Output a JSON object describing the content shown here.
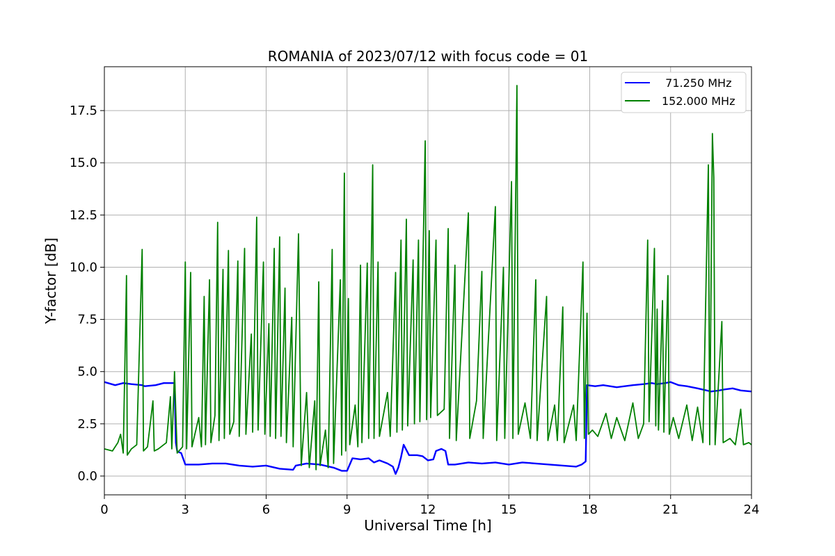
{
  "chart_data": {
    "type": "line",
    "title": "ROMANIA of 2023/07/12 with focus code = 01",
    "xlabel": "Universal Time [h]",
    "ylabel": "Y-factor [dB]",
    "xlim": [
      0,
      24
    ],
    "ylim": [
      -0.9,
      19.6
    ],
    "xticks": [
      0,
      3,
      6,
      9,
      12,
      15,
      18,
      21,
      24
    ],
    "yticks": [
      0.0,
      2.5,
      5.0,
      7.5,
      10.0,
      12.5,
      15.0,
      17.5
    ],
    "xtick_labels": [
      "0",
      "3",
      "6",
      "9",
      "12",
      "15",
      "18",
      "21",
      "24"
    ],
    "ytick_labels": [
      "0.0",
      "2.5",
      "5.0",
      "7.5",
      "10.0",
      "12.5",
      "15.0",
      "17.5"
    ],
    "grid": true,
    "legend_position": "top-right",
    "series": [
      {
        "name": "  71.250 MHz",
        "color": "#0000ff",
        "points": [
          [
            0,
            4.5
          ],
          [
            0.4,
            4.35
          ],
          [
            0.7,
            4.45
          ],
          [
            1.0,
            4.4
          ],
          [
            1.4,
            4.35
          ],
          [
            1.5,
            4.3
          ],
          [
            1.9,
            4.35
          ],
          [
            2.2,
            4.45
          ],
          [
            2.6,
            4.45
          ],
          [
            2.65,
            1.6
          ],
          [
            2.7,
            1.2
          ],
          [
            2.75,
            1.15
          ],
          [
            2.85,
            1.1
          ],
          [
            3.0,
            0.55
          ],
          [
            3.5,
            0.55
          ],
          [
            4.0,
            0.6
          ],
          [
            4.5,
            0.6
          ],
          [
            5.0,
            0.5
          ],
          [
            5.5,
            0.45
          ],
          [
            6.0,
            0.5
          ],
          [
            6.5,
            0.35
          ],
          [
            7.0,
            0.3
          ],
          [
            7.1,
            0.5
          ],
          [
            7.5,
            0.6
          ],
          [
            8.0,
            0.55
          ],
          [
            8.5,
            0.4
          ],
          [
            8.8,
            0.25
          ],
          [
            9.0,
            0.25
          ],
          [
            9.2,
            0.85
          ],
          [
            9.5,
            0.8
          ],
          [
            9.8,
            0.85
          ],
          [
            10.0,
            0.65
          ],
          [
            10.2,
            0.75
          ],
          [
            10.5,
            0.6
          ],
          [
            10.7,
            0.45
          ],
          [
            10.8,
            0.1
          ],
          [
            10.9,
            0.4
          ],
          [
            11.0,
            0.9
          ],
          [
            11.1,
            1.5
          ],
          [
            11.3,
            1.0
          ],
          [
            11.6,
            1.0
          ],
          [
            11.8,
            0.95
          ],
          [
            12.0,
            0.75
          ],
          [
            12.2,
            0.8
          ],
          [
            12.3,
            1.2
          ],
          [
            12.5,
            1.3
          ],
          [
            12.65,
            1.2
          ],
          [
            12.75,
            0.55
          ],
          [
            13.0,
            0.55
          ],
          [
            13.5,
            0.65
          ],
          [
            14.0,
            0.6
          ],
          [
            14.5,
            0.65
          ],
          [
            15.0,
            0.55
          ],
          [
            15.5,
            0.65
          ],
          [
            16.0,
            0.6
          ],
          [
            16.5,
            0.55
          ],
          [
            17.0,
            0.5
          ],
          [
            17.5,
            0.45
          ],
          [
            17.7,
            0.55
          ],
          [
            17.85,
            0.7
          ],
          [
            17.9,
            4.35
          ],
          [
            18.2,
            4.3
          ],
          [
            18.5,
            4.35
          ],
          [
            19.0,
            4.25
          ],
          [
            19.3,
            4.3
          ],
          [
            19.6,
            4.35
          ],
          [
            20.0,
            4.4
          ],
          [
            20.3,
            4.45
          ],
          [
            20.5,
            4.4
          ],
          [
            20.8,
            4.45
          ],
          [
            21.0,
            4.5
          ],
          [
            21.3,
            4.35
          ],
          [
            21.6,
            4.3
          ],
          [
            22.0,
            4.2
          ],
          [
            22.5,
            4.05
          ],
          [
            22.8,
            4.1
          ],
          [
            23.0,
            4.15
          ],
          [
            23.3,
            4.2
          ],
          [
            23.6,
            4.1
          ],
          [
            24.0,
            4.05
          ]
        ]
      },
      {
        "name": "152.000 MHz",
        "color": "#008000",
        "points": [
          [
            0,
            1.3
          ],
          [
            0.3,
            1.2
          ],
          [
            0.5,
            1.6
          ],
          [
            0.6,
            2.0
          ],
          [
            0.7,
            1.1
          ],
          [
            0.82,
            9.6
          ],
          [
            0.85,
            1.0
          ],
          [
            1.0,
            1.3
          ],
          [
            1.2,
            1.5
          ],
          [
            1.4,
            10.85
          ],
          [
            1.45,
            1.2
          ],
          [
            1.6,
            1.4
          ],
          [
            1.8,
            3.6
          ],
          [
            1.85,
            1.2
          ],
          [
            2.0,
            1.3
          ],
          [
            2.3,
            1.6
          ],
          [
            2.45,
            3.8
          ],
          [
            2.5,
            1.3
          ],
          [
            2.6,
            5.0
          ],
          [
            2.7,
            1.1
          ],
          [
            2.9,
            1.4
          ],
          [
            3.0,
            10.25
          ],
          [
            3.05,
            1.3
          ],
          [
            3.2,
            9.75
          ],
          [
            3.25,
            1.4
          ],
          [
            3.5,
            2.8
          ],
          [
            3.6,
            1.4
          ],
          [
            3.7,
            8.6
          ],
          [
            3.75,
            1.5
          ],
          [
            3.9,
            9.4
          ],
          [
            3.95,
            1.6
          ],
          [
            4.1,
            2.9
          ],
          [
            4.2,
            12.15
          ],
          [
            4.25,
            1.7
          ],
          [
            4.4,
            9.9
          ],
          [
            4.45,
            1.8
          ],
          [
            4.6,
            10.8
          ],
          [
            4.65,
            2.0
          ],
          [
            4.8,
            2.6
          ],
          [
            4.95,
            10.3
          ],
          [
            5.0,
            1.9
          ],
          [
            5.2,
            10.9
          ],
          [
            5.25,
            2.0
          ],
          [
            5.45,
            6.8
          ],
          [
            5.5,
            2.1
          ],
          [
            5.65,
            12.4
          ],
          [
            5.7,
            2.2
          ],
          [
            5.9,
            10.25
          ],
          [
            5.95,
            2.0
          ],
          [
            6.1,
            7.3
          ],
          [
            6.15,
            1.9
          ],
          [
            6.3,
            10.9
          ],
          [
            6.35,
            1.8
          ],
          [
            6.5,
            11.45
          ],
          [
            6.55,
            1.9
          ],
          [
            6.7,
            9.0
          ],
          [
            6.75,
            1.6
          ],
          [
            6.95,
            7.6
          ],
          [
            7.0,
            1.4
          ],
          [
            7.2,
            11.6
          ],
          [
            7.3,
            0.5
          ],
          [
            7.5,
            4.0
          ],
          [
            7.6,
            0.4
          ],
          [
            7.8,
            3.6
          ],
          [
            7.85,
            0.3
          ],
          [
            7.95,
            9.3
          ],
          [
            8.0,
            0.5
          ],
          [
            8.2,
            2.2
          ],
          [
            8.3,
            0.4
          ],
          [
            8.45,
            10.85
          ],
          [
            8.5,
            0.6
          ],
          [
            8.75,
            9.4
          ],
          [
            8.8,
            1.0
          ],
          [
            8.9,
            14.5
          ],
          [
            8.95,
            1.2
          ],
          [
            9.05,
            8.5
          ],
          [
            9.1,
            1.5
          ],
          [
            9.3,
            3.4
          ],
          [
            9.4,
            1.4
          ],
          [
            9.5,
            10.1
          ],
          [
            9.55,
            1.6
          ],
          [
            9.75,
            10.2
          ],
          [
            9.8,
            1.8
          ],
          [
            9.95,
            14.9
          ],
          [
            10.0,
            1.8
          ],
          [
            10.15,
            10.25
          ],
          [
            10.2,
            1.9
          ],
          [
            10.5,
            4.0
          ],
          [
            10.6,
            1.9
          ],
          [
            10.8,
            9.75
          ],
          [
            10.85,
            2.1
          ],
          [
            11.0,
            11.3
          ],
          [
            11.05,
            2.2
          ],
          [
            11.2,
            12.3
          ],
          [
            11.25,
            2.4
          ],
          [
            11.45,
            10.35
          ],
          [
            11.5,
            2.5
          ],
          [
            11.65,
            11.3
          ],
          [
            11.7,
            2.6
          ],
          [
            11.9,
            16.05
          ],
          [
            11.95,
            2.7
          ],
          [
            12.05,
            11.75
          ],
          [
            12.1,
            2.8
          ],
          [
            12.3,
            11.3
          ],
          [
            12.35,
            2.9
          ],
          [
            12.6,
            3.2
          ],
          [
            12.75,
            11.85
          ],
          [
            12.8,
            1.8
          ],
          [
            13.0,
            10.1
          ],
          [
            13.05,
            1.7
          ],
          [
            13.5,
            12.6
          ],
          [
            13.55,
            1.8
          ],
          [
            13.8,
            3.6
          ],
          [
            14.0,
            9.8
          ],
          [
            14.05,
            1.8
          ],
          [
            14.5,
            12.9
          ],
          [
            14.55,
            1.7
          ],
          [
            14.8,
            10.0
          ],
          [
            14.85,
            1.8
          ],
          [
            15.1,
            14.1
          ],
          [
            15.15,
            1.8
          ],
          [
            15.3,
            18.7
          ],
          [
            15.35,
            2.0
          ],
          [
            15.6,
            3.5
          ],
          [
            15.8,
            1.8
          ],
          [
            16.0,
            9.4
          ],
          [
            16.05,
            1.7
          ],
          [
            16.4,
            8.6
          ],
          [
            16.45,
            1.7
          ],
          [
            16.7,
            3.4
          ],
          [
            16.8,
            1.7
          ],
          [
            17.0,
            8.1
          ],
          [
            17.05,
            1.6
          ],
          [
            17.4,
            3.4
          ],
          [
            17.5,
            1.7
          ],
          [
            17.75,
            10.25
          ],
          [
            17.8,
            1.8
          ],
          [
            17.9,
            7.8
          ],
          [
            17.95,
            2.0
          ],
          [
            18.1,
            2.2
          ],
          [
            18.3,
            1.9
          ],
          [
            18.6,
            3.0
          ],
          [
            18.8,
            1.8
          ],
          [
            19.0,
            2.8
          ],
          [
            19.3,
            1.7
          ],
          [
            19.6,
            3.5
          ],
          [
            19.8,
            1.8
          ],
          [
            20.0,
            2.5
          ],
          [
            20.15,
            11.3
          ],
          [
            20.2,
            2.6
          ],
          [
            20.4,
            10.9
          ],
          [
            20.45,
            2.4
          ],
          [
            20.5,
            8.0
          ],
          [
            20.55,
            2.2
          ],
          [
            20.7,
            8.4
          ],
          [
            20.75,
            2.1
          ],
          [
            20.9,
            9.6
          ],
          [
            20.95,
            2.0
          ],
          [
            21.1,
            2.8
          ],
          [
            21.3,
            1.8
          ],
          [
            21.6,
            3.4
          ],
          [
            21.8,
            1.7
          ],
          [
            22.0,
            3.3
          ],
          [
            22.2,
            1.6
          ],
          [
            22.4,
            14.9
          ],
          [
            22.45,
            1.5
          ],
          [
            22.55,
            16.4
          ],
          [
            22.6,
            14.3
          ],
          [
            22.65,
            1.5
          ],
          [
            22.9,
            7.4
          ],
          [
            22.95,
            1.6
          ],
          [
            23.2,
            1.8
          ],
          [
            23.4,
            1.5
          ],
          [
            23.6,
            3.2
          ],
          [
            23.7,
            1.5
          ],
          [
            23.9,
            1.6
          ],
          [
            24.0,
            1.5
          ]
        ]
      }
    ]
  }
}
